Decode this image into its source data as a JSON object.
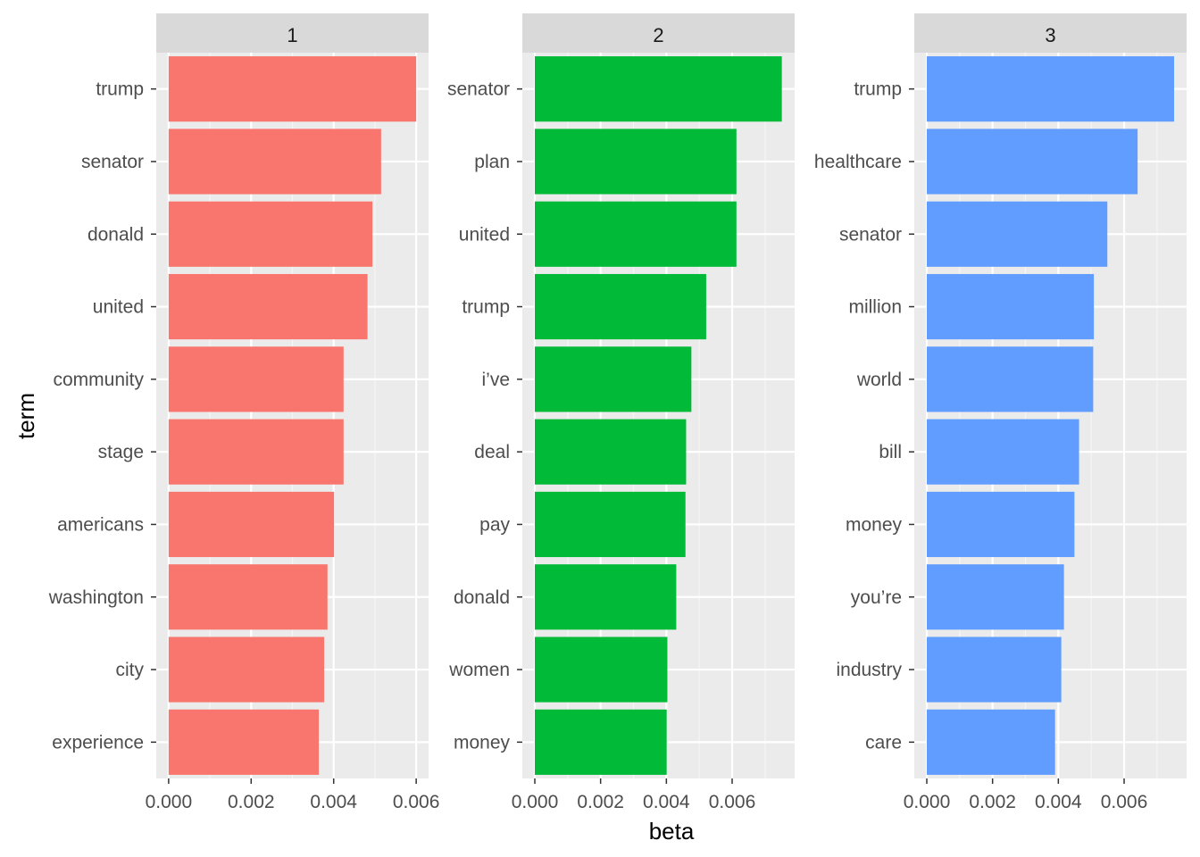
{
  "chart_data": {
    "type": "bar",
    "orientation": "horizontal",
    "xlabel": "beta",
    "ylabel": "term",
    "grid": true,
    "legend": "none",
    "panels": [
      {
        "facet": "1",
        "color": "#F8766D",
        "xlim": [
          -0.0003,
          0.0063
        ],
        "xticks": [
          "0.000",
          "0.002",
          "0.004",
          "0.006"
        ],
        "xtick_values": [
          0,
          0.002,
          0.004,
          0.006
        ],
        "categories": [
          "trump",
          "senator",
          "donald",
          "united",
          "community",
          "stage",
          "americans",
          "washington",
          "city",
          "experience"
        ],
        "values": [
          0.006,
          0.00515,
          0.00494,
          0.00482,
          0.00424,
          0.00424,
          0.00401,
          0.00385,
          0.00377,
          0.00364
        ]
      },
      {
        "facet": "2",
        "color": "#00BA38",
        "xlim": [
          -0.00038,
          0.0079
        ],
        "xticks": [
          "0.000",
          "0.002",
          "0.004",
          "0.006"
        ],
        "xtick_values": [
          0,
          0.002,
          0.004,
          0.006
        ],
        "categories": [
          "senator",
          "plan",
          "united",
          "trump",
          "i’ve",
          "deal",
          "pay",
          "donald",
          "women",
          "money"
        ],
        "values": [
          0.00751,
          0.00613,
          0.00613,
          0.00521,
          0.00476,
          0.0046,
          0.00458,
          0.0043,
          0.00403,
          0.00401
        ]
      },
      {
        "facet": "3",
        "color": "#619CFF",
        "xlim": [
          -0.00038,
          0.0079
        ],
        "xticks": [
          "0.000",
          "0.002",
          "0.004",
          "0.006"
        ],
        "xtick_values": [
          0,
          0.002,
          0.004,
          0.006
        ],
        "categories": [
          "trump",
          "healthcare",
          "senator",
          "million",
          "world",
          "bill",
          "money",
          "you’re",
          "industry",
          "care"
        ],
        "values": [
          0.00752,
          0.00641,
          0.00549,
          0.00508,
          0.00506,
          0.00463,
          0.00449,
          0.00417,
          0.00409,
          0.0039
        ]
      }
    ]
  }
}
